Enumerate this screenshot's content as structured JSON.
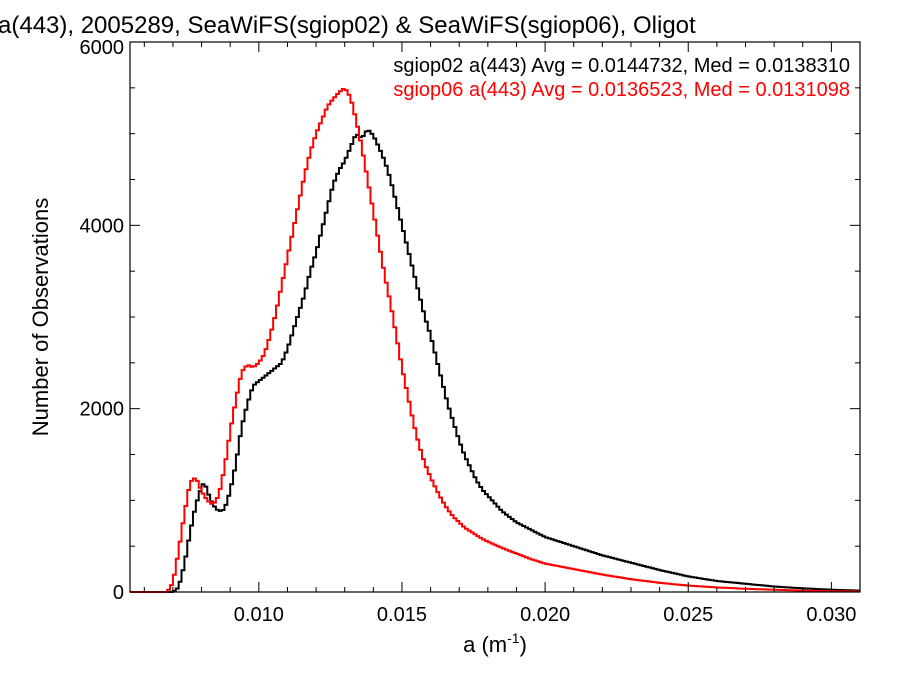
{
  "chart_data": {
    "type": "line",
    "title": "a(443), 2005289, SeaWiFS(sgiop02) & SeaWiFS(sgiop06), Oligot",
    "xlabel": "a (m",
    "xlabel_sup": "-1",
    "xlabel_suffix": ")",
    "ylabel": "Number of Observations",
    "xlim": [
      0.0055,
      0.031
    ],
    "ylim": [
      0,
      6000
    ],
    "x_ticks": [
      0.01,
      0.015,
      0.02,
      0.025,
      0.03
    ],
    "x_tick_labels": [
      "0.010",
      "0.015",
      "0.020",
      "0.025",
      "0.030"
    ],
    "y_ticks": [
      0,
      2000,
      4000,
      6000
    ],
    "y_tick_labels": [
      "0",
      "2000",
      "4000",
      "6000"
    ],
    "grid": false,
    "legend_position": "top-right",
    "series": [
      {
        "name": "sgiop02",
        "color": "#000000",
        "legend_text": "sgiop02 a(443) Avg = 0.0144732, Med = 0.0138310",
        "points": [
          [
            0.0055,
            0
          ],
          [
            0.007,
            0
          ],
          [
            0.0072,
            50
          ],
          [
            0.0074,
            300
          ],
          [
            0.0076,
            650
          ],
          [
            0.0078,
            950
          ],
          [
            0.008,
            1150
          ],
          [
            0.0081,
            1200
          ],
          [
            0.0082,
            1100
          ],
          [
            0.0084,
            950
          ],
          [
            0.0086,
            880
          ],
          [
            0.0088,
            900
          ],
          [
            0.009,
            1100
          ],
          [
            0.0092,
            1400
          ],
          [
            0.0094,
            1800
          ],
          [
            0.0096,
            2050
          ],
          [
            0.0098,
            2250
          ],
          [
            0.01,
            2300
          ],
          [
            0.0102,
            2350
          ],
          [
            0.0104,
            2400
          ],
          [
            0.0106,
            2450
          ],
          [
            0.0108,
            2500
          ],
          [
            0.011,
            2650
          ],
          [
            0.0112,
            2850
          ],
          [
            0.0114,
            3050
          ],
          [
            0.0116,
            3250
          ],
          [
            0.0118,
            3500
          ],
          [
            0.012,
            3700
          ],
          [
            0.0122,
            3950
          ],
          [
            0.0124,
            4200
          ],
          [
            0.0126,
            4450
          ],
          [
            0.0128,
            4600
          ],
          [
            0.013,
            4700
          ],
          [
            0.0132,
            4850
          ],
          [
            0.0134,
            5000
          ],
          [
            0.0136,
            4950
          ],
          [
            0.0138,
            5050
          ],
          [
            0.014,
            4980
          ],
          [
            0.0142,
            4850
          ],
          [
            0.0144,
            4700
          ],
          [
            0.0146,
            4500
          ],
          [
            0.0148,
            4250
          ],
          [
            0.015,
            4000
          ],
          [
            0.0152,
            3750
          ],
          [
            0.0154,
            3500
          ],
          [
            0.0156,
            3250
          ],
          [
            0.0158,
            3000
          ],
          [
            0.016,
            2800
          ],
          [
            0.0162,
            2550
          ],
          [
            0.0164,
            2300
          ],
          [
            0.0166,
            2050
          ],
          [
            0.0168,
            1850
          ],
          [
            0.017,
            1650
          ],
          [
            0.0172,
            1480
          ],
          [
            0.0174,
            1350
          ],
          [
            0.0176,
            1220
          ],
          [
            0.0178,
            1120
          ],
          [
            0.018,
            1050
          ],
          [
            0.0185,
            880
          ],
          [
            0.019,
            760
          ],
          [
            0.0195,
            680
          ],
          [
            0.02,
            600
          ],
          [
            0.021,
            500
          ],
          [
            0.022,
            400
          ],
          [
            0.023,
            320
          ],
          [
            0.024,
            240
          ],
          [
            0.025,
            170
          ],
          [
            0.026,
            120
          ],
          [
            0.027,
            90
          ],
          [
            0.028,
            60
          ],
          [
            0.029,
            40
          ],
          [
            0.03,
            25
          ],
          [
            0.031,
            15
          ]
        ]
      },
      {
        "name": "sgiop06",
        "color": "#ff0000",
        "legend_text": "sgiop06 a(443) Avg = 0.0136523, Med = 0.0131098",
        "points": [
          [
            0.0055,
            0
          ],
          [
            0.0068,
            0
          ],
          [
            0.007,
            100
          ],
          [
            0.0072,
            450
          ],
          [
            0.0074,
            850
          ],
          [
            0.0076,
            1200
          ],
          [
            0.0078,
            1250
          ],
          [
            0.008,
            1100
          ],
          [
            0.0082,
            1000
          ],
          [
            0.0084,
            950
          ],
          [
            0.0086,
            1050
          ],
          [
            0.0088,
            1350
          ],
          [
            0.009,
            1750
          ],
          [
            0.0092,
            2100
          ],
          [
            0.0094,
            2400
          ],
          [
            0.0096,
            2480
          ],
          [
            0.0098,
            2450
          ],
          [
            0.01,
            2500
          ],
          [
            0.0102,
            2600
          ],
          [
            0.0104,
            2800
          ],
          [
            0.0106,
            3050
          ],
          [
            0.0108,
            3350
          ],
          [
            0.011,
            3650
          ],
          [
            0.0112,
            3950
          ],
          [
            0.0114,
            4250
          ],
          [
            0.0116,
            4550
          ],
          [
            0.0118,
            4800
          ],
          [
            0.012,
            5000
          ],
          [
            0.0122,
            5150
          ],
          [
            0.0124,
            5300
          ],
          [
            0.0126,
            5380
          ],
          [
            0.0128,
            5450
          ],
          [
            0.013,
            5500
          ],
          [
            0.0132,
            5400
          ],
          [
            0.0134,
            5150
          ],
          [
            0.0136,
            4850
          ],
          [
            0.0138,
            4500
          ],
          [
            0.014,
            4150
          ],
          [
            0.0142,
            3800
          ],
          [
            0.0144,
            3450
          ],
          [
            0.0146,
            3150
          ],
          [
            0.0148,
            2800
          ],
          [
            0.015,
            2450
          ],
          [
            0.0152,
            2150
          ],
          [
            0.0154,
            1850
          ],
          [
            0.0156,
            1600
          ],
          [
            0.0158,
            1400
          ],
          [
            0.016,
            1250
          ],
          [
            0.0162,
            1120
          ],
          [
            0.0164,
            1000
          ],
          [
            0.0166,
            900
          ],
          [
            0.0168,
            820
          ],
          [
            0.017,
            760
          ],
          [
            0.0172,
            700
          ],
          [
            0.0174,
            660
          ],
          [
            0.0176,
            620
          ],
          [
            0.0178,
            580
          ],
          [
            0.018,
            550
          ],
          [
            0.0185,
            480
          ],
          [
            0.019,
            420
          ],
          [
            0.0195,
            360
          ],
          [
            0.02,
            310
          ],
          [
            0.021,
            250
          ],
          [
            0.022,
            190
          ],
          [
            0.023,
            140
          ],
          [
            0.024,
            100
          ],
          [
            0.025,
            70
          ],
          [
            0.026,
            50
          ],
          [
            0.027,
            35
          ],
          [
            0.028,
            25
          ],
          [
            0.029,
            15
          ],
          [
            0.03,
            10
          ],
          [
            0.031,
            5
          ]
        ]
      }
    ]
  }
}
